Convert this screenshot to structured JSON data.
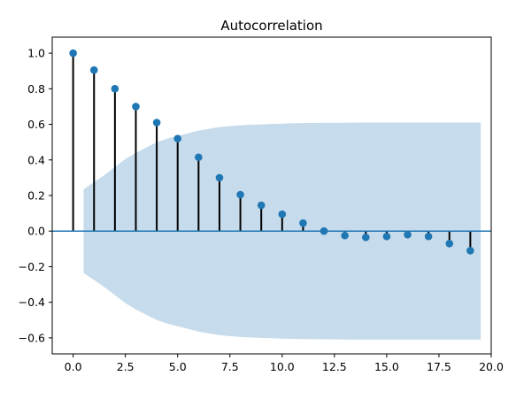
{
  "chart_data": {
    "type": "scatter",
    "title": "Autocorrelation",
    "xlabel": "",
    "ylabel": "",
    "xlim": [
      -1,
      20
    ],
    "ylim": [
      -0.69,
      1.09
    ],
    "x_ticks": [
      0.0,
      2.5,
      5.0,
      7.5,
      10.0,
      12.5,
      15.0,
      17.5,
      20.0
    ],
    "x_tick_labels": [
      "0.0",
      "2.5",
      "5.0",
      "7.5",
      "10.0",
      "12.5",
      "15.0",
      "17.5",
      "20.0"
    ],
    "y_ticks": [
      -0.6,
      -0.4,
      -0.2,
      0.0,
      0.2,
      0.4,
      0.6,
      0.8,
      1.0
    ],
    "y_tick_labels": [
      "−0.6",
      "−0.4",
      "−0.2",
      "0.0",
      "0.2",
      "0.4",
      "0.6",
      "0.8",
      "1.0"
    ],
    "grid": false,
    "series": [
      {
        "lags": [
          0,
          1,
          2,
          3,
          4,
          5,
          6,
          7,
          8,
          9,
          10,
          11,
          12,
          13,
          14,
          15,
          16,
          17,
          18,
          19
        ],
        "values": [
          1.0,
          0.905,
          0.8,
          0.7,
          0.61,
          0.52,
          0.415,
          0.3,
          0.205,
          0.145,
          0.095,
          0.045,
          0.0,
          -0.025,
          -0.035,
          -0.03,
          -0.02,
          -0.03,
          -0.07,
          -0.11
        ]
      }
    ],
    "confidence_band": {
      "x": [
        0.5,
        1,
        1.5,
        2,
        2.5,
        3,
        3.5,
        4,
        4.5,
        5,
        5.5,
        6,
        6.5,
        7,
        7.5,
        8,
        8.5,
        9,
        9.5,
        10,
        10.5,
        11,
        12,
        13,
        14,
        15,
        16,
        17,
        18,
        19,
        19.5
      ],
      "upper": [
        0.235,
        0.275,
        0.315,
        0.36,
        0.405,
        0.44,
        0.47,
        0.5,
        0.52,
        0.535,
        0.55,
        0.565,
        0.575,
        0.585,
        0.59,
        0.595,
        0.598,
        0.6,
        0.602,
        0.604,
        0.606,
        0.607,
        0.608,
        0.609,
        0.61,
        0.61,
        0.61,
        0.61,
        0.61,
        0.61,
        0.61
      ]
    },
    "colors": {
      "marker": "#1f77b4",
      "stem": "#000000",
      "zero_line": "#1f77b4",
      "band": "#c6dbeb"
    }
  }
}
